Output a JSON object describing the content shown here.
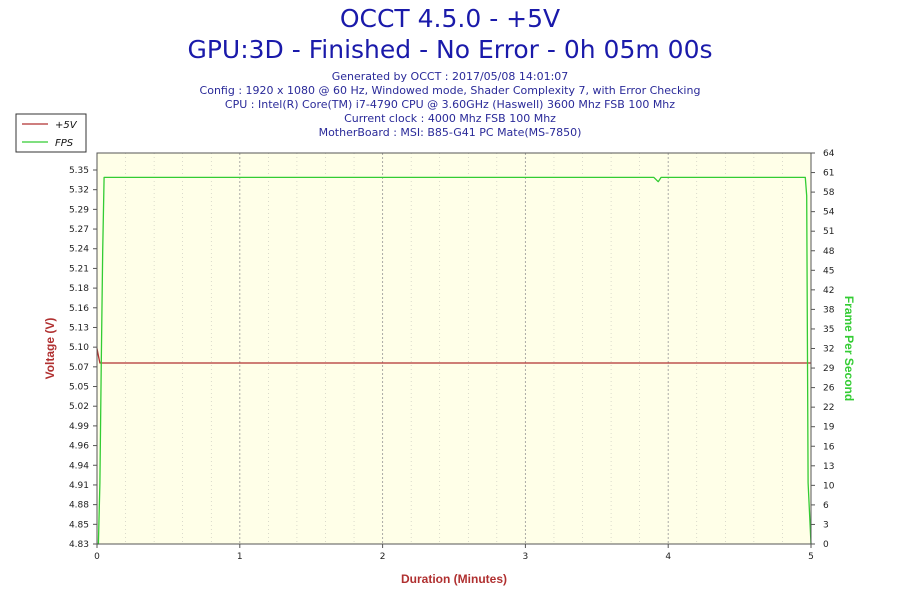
{
  "header": {
    "title": "OCCT 4.5.0 - +5V",
    "subtitle": "GPU:3D - Finished - No Error - 0h 05m 00s",
    "info_lines": [
      "Generated by OCCT : 2017/05/08 14:01:07",
      "Config : 1920 x 1080 @ 60 Hz, Windowed mode, Shader Complexity 7, with Error Checking",
      "CPU : Intel(R) Core(TM) i7-4790 CPU @ 3.60GHz (Haswell) 3600 Mhz FSB 100 Mhz",
      "Current clock : 4000 Mhz FSB 100 Mhz",
      "MotherBoard : MSI: B85-G41 PC Mate(MS-7850)"
    ]
  },
  "chart_data": {
    "type": "line",
    "xlabel": "Duration (Minutes)",
    "ylabel": "Voltage (V)",
    "y2label": "Frame Per Second",
    "xlim": [
      0,
      5
    ],
    "ylim": [
      4.83,
      5.37
    ],
    "y2lim": [
      0,
      64
    ],
    "x_ticks": [
      "0",
      "1",
      "2",
      "3",
      "4",
      "5"
    ],
    "y_ticks": [
      "5.35",
      "5.32",
      "5.29",
      "5.27",
      "5.24",
      "5.21",
      "5.18",
      "5.16",
      "5.13",
      "5.10",
      "5.07",
      "5.05",
      "5.02",
      "4.99",
      "4.96",
      "4.94",
      "4.91",
      "4.88",
      "4.85",
      "4.83"
    ],
    "y2_ticks": [
      "64",
      "61",
      "58",
      "54",
      "51",
      "48",
      "45",
      "42",
      "38",
      "35",
      "32",
      "29",
      "26",
      "22",
      "19",
      "16",
      "13",
      "10",
      "6",
      "3",
      "0"
    ],
    "grid": true,
    "legend_position": "top-left",
    "colors": {
      "voltage": "#b03030",
      "fps": "#33cc33",
      "plot_bg": "#ffffe8",
      "frame": "#555555",
      "grid": "#999999"
    },
    "series": [
      {
        "name": "+5V",
        "axis": "left",
        "x": [
          0,
          0.01,
          0.02,
          0.5,
          1,
          2,
          3,
          4,
          4.97,
          4.98,
          5
        ],
        "y": [
          5.1,
          5.09,
          5.08,
          5.08,
          5.08,
          5.08,
          5.08,
          5.08,
          5.08,
          5.08,
          5.08
        ]
      },
      {
        "name": "FPS",
        "axis": "right",
        "x": [
          0,
          0.01,
          0.02,
          0.03,
          0.04,
          0.05,
          0.06,
          0.5,
          1,
          2,
          3,
          3.8,
          3.9,
          3.93,
          3.95,
          4.0,
          4.5,
          4.96,
          4.97,
          4.98,
          5
        ],
        "y": [
          0,
          0,
          10,
          30,
          48,
          60,
          60,
          60,
          60,
          60,
          60,
          60,
          60,
          59.3,
          60,
          60,
          60,
          60,
          57,
          10,
          0
        ]
      }
    ]
  }
}
